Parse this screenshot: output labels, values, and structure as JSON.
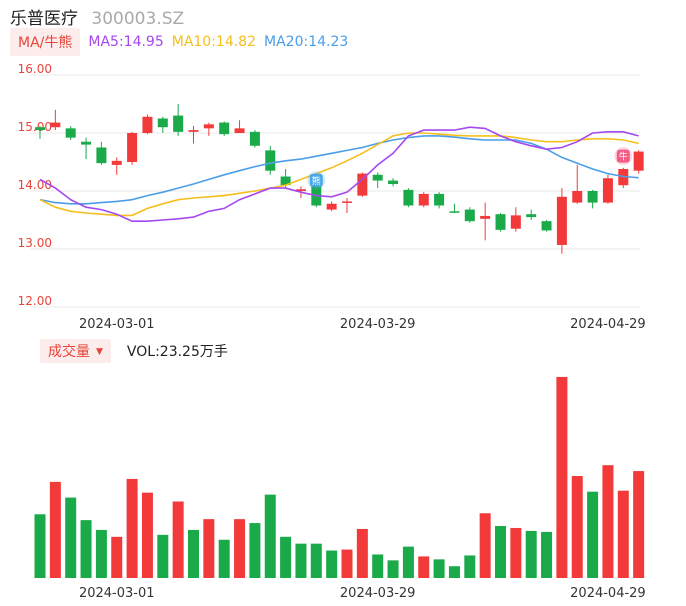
{
  "header": {
    "name": "乐普医疗",
    "code": "300003.SZ"
  },
  "ma_bar": {
    "toggle_label": "MA/牛熊",
    "ma5_label": "MA5:14.95",
    "ma10_label": "MA10:14.82",
    "ma20_label": "MA20:14.23",
    "colors": {
      "toggle": "#e8443a",
      "ma5": "#a548f0",
      "ma10": "#f5bf1d",
      "ma20": "#4a9ee8"
    }
  },
  "volume_bar": {
    "toggle_label": "成交量",
    "caret": "▼",
    "vol_label": "VOL:23.25万手"
  },
  "colors": {
    "up": "#f23a3a",
    "down": "#1aaa4a",
    "axis_text": "#e8443a",
    "grid": "#e8e8e8"
  },
  "markers": [
    {
      "label": "熊",
      "index": 18,
      "color": "#4aa8ea"
    },
    {
      "label": "牛",
      "index": 38,
      "color": "#f25e86"
    }
  ],
  "chart_data": [
    {
      "type": "candlestick",
      "ylim": [
        12.0,
        16.0
      ],
      "yticks": [
        "16.00",
        "15.00",
        "14.00",
        "13.00",
        "12.00"
      ],
      "xticks": [
        {
          "label": "2024-03-01",
          "index": 5
        },
        {
          "label": "2024-03-29",
          "index": 22
        },
        {
          "label": "2024-04-29",
          "index": 37
        }
      ],
      "candles": [
        {
          "o": 15.1,
          "c": 15.05,
          "h": 15.12,
          "l": 14.9
        },
        {
          "o": 15.1,
          "c": 15.18,
          "h": 15.4,
          "l": 15.05
        },
        {
          "o": 15.08,
          "c": 14.92,
          "h": 15.12,
          "l": 14.88
        },
        {
          "o": 14.85,
          "c": 14.8,
          "h": 14.92,
          "l": 14.55
        },
        {
          "o": 14.75,
          "c": 14.48,
          "h": 14.85,
          "l": 14.45
        },
        {
          "o": 14.45,
          "c": 14.52,
          "h": 14.58,
          "l": 14.28
        },
        {
          "o": 14.5,
          "c": 15.0,
          "h": 15.02,
          "l": 14.45
        },
        {
          "o": 15.0,
          "c": 15.28,
          "h": 15.32,
          "l": 14.98
        },
        {
          "o": 15.25,
          "c": 15.1,
          "h": 15.28,
          "l": 15.0
        },
        {
          "o": 15.3,
          "c": 15.02,
          "h": 15.5,
          "l": 14.95
        },
        {
          "o": 15.02,
          "c": 15.05,
          "h": 15.12,
          "l": 14.82
        },
        {
          "o": 15.08,
          "c": 15.15,
          "h": 15.18,
          "l": 14.95
        },
        {
          "o": 15.18,
          "c": 14.98,
          "h": 15.2,
          "l": 14.95
        },
        {
          "o": 15.0,
          "c": 15.08,
          "h": 15.22,
          "l": 15.0
        },
        {
          "o": 15.02,
          "c": 14.78,
          "h": 15.05,
          "l": 14.75
        },
        {
          "o": 14.7,
          "c": 14.35,
          "h": 14.78,
          "l": 14.28
        },
        {
          "o": 14.25,
          "c": 14.1,
          "h": 14.38,
          "l": 14.05
        },
        {
          "o": 14.0,
          "c": 14.03,
          "h": 14.08,
          "l": 13.88
        },
        {
          "o": 14.12,
          "c": 13.75,
          "h": 14.15,
          "l": 13.72
        },
        {
          "o": 13.68,
          "c": 13.78,
          "h": 13.82,
          "l": 13.65
        },
        {
          "o": 13.8,
          "c": 13.82,
          "h": 13.88,
          "l": 13.62
        },
        {
          "o": 13.92,
          "c": 14.3,
          "h": 14.32,
          "l": 13.9
        },
        {
          "o": 14.28,
          "c": 14.18,
          "h": 14.32,
          "l": 14.05
        },
        {
          "o": 14.18,
          "c": 14.12,
          "h": 14.22,
          "l": 14.08
        },
        {
          "o": 14.02,
          "c": 13.75,
          "h": 14.05,
          "l": 13.72
        },
        {
          "o": 13.75,
          "c": 13.95,
          "h": 13.98,
          "l": 13.72
        },
        {
          "o": 13.95,
          "c": 13.75,
          "h": 13.98,
          "l": 13.7
        },
        {
          "o": 13.65,
          "c": 13.63,
          "h": 13.78,
          "l": 13.62
        },
        {
          "o": 13.68,
          "c": 13.48,
          "h": 13.72,
          "l": 13.45
        },
        {
          "o": 13.52,
          "c": 13.57,
          "h": 13.8,
          "l": 13.15
        },
        {
          "o": 13.6,
          "c": 13.33,
          "h": 13.62,
          "l": 13.3
        },
        {
          "o": 13.35,
          "c": 13.58,
          "h": 13.72,
          "l": 13.3
        },
        {
          "o": 13.6,
          "c": 13.55,
          "h": 13.68,
          "l": 13.5
        },
        {
          "o": 13.48,
          "c": 13.32,
          "h": 13.5,
          "l": 13.3
        },
        {
          "o": 13.07,
          "c": 13.9,
          "h": 14.05,
          "l": 12.92
        },
        {
          "o": 13.8,
          "c": 14.0,
          "h": 14.45,
          "l": 13.78
        },
        {
          "o": 14.0,
          "c": 13.8,
          "h": 14.02,
          "l": 13.7
        },
        {
          "o": 13.8,
          "c": 14.22,
          "h": 14.28,
          "l": 13.78
        },
        {
          "o": 14.1,
          "c": 14.38,
          "h": 14.4,
          "l": 14.05
        },
        {
          "o": 14.35,
          "c": 14.68,
          "h": 14.7,
          "l": 14.3
        }
      ],
      "ma": {
        "ma5": [
          14.2,
          14.05,
          13.85,
          13.72,
          13.68,
          13.6,
          13.48,
          13.48,
          13.5,
          13.52,
          13.55,
          13.65,
          13.7,
          13.85,
          13.95,
          14.05,
          14.05,
          13.98,
          13.92,
          13.9,
          13.98,
          14.2,
          14.45,
          14.65,
          14.95,
          15.05,
          15.05,
          15.05,
          15.1,
          15.08,
          14.95,
          14.85,
          14.78,
          14.72,
          14.75,
          14.85,
          15.0,
          15.02,
          15.02,
          14.95
        ],
        "ma10": [
          13.85,
          13.72,
          13.65,
          13.62,
          13.6,
          13.58,
          13.58,
          13.7,
          13.78,
          13.85,
          13.88,
          13.9,
          13.92,
          13.96,
          14.0,
          14.05,
          14.1,
          14.2,
          14.3,
          14.4,
          14.52,
          14.65,
          14.8,
          14.95,
          15.0,
          15.0,
          14.98,
          14.96,
          14.95,
          14.95,
          14.95,
          14.92,
          14.88,
          14.85,
          14.85,
          14.88,
          14.9,
          14.9,
          14.88,
          14.82
        ],
        "ma20": [
          13.85,
          13.8,
          13.78,
          13.78,
          13.8,
          13.82,
          13.85,
          13.92,
          13.98,
          14.05,
          14.12,
          14.2,
          14.28,
          14.35,
          14.42,
          14.48,
          14.52,
          14.55,
          14.6,
          14.65,
          14.7,
          14.75,
          14.82,
          14.88,
          14.92,
          14.95,
          14.95,
          14.93,
          14.9,
          14.88,
          14.88,
          14.88,
          14.82,
          14.72,
          14.58,
          14.48,
          14.38,
          14.3,
          14.25,
          14.23
        ]
      }
    },
    {
      "type": "bar",
      "title": "成交量",
      "values": [
        6.5,
        9.8,
        8.2,
        5.9,
        4.9,
        4.2,
        10.1,
        8.7,
        4.4,
        7.8,
        4.9,
        6.0,
        3.9,
        6.0,
        5.6,
        8.5,
        4.2,
        3.5,
        3.5,
        2.8,
        2.9,
        5.0,
        2.4,
        1.8,
        3.2,
        2.2,
        1.9,
        1.2,
        2.3,
        6.6,
        5.3,
        5.1,
        4.8,
        4.7,
        20.5,
        10.4,
        8.8,
        11.5,
        8.9,
        10.9
      ],
      "directions": [
        "down",
        "up",
        "down",
        "down",
        "down",
        "up",
        "up",
        "up",
        "down",
        "up",
        "down",
        "up",
        "down",
        "up",
        "down",
        "down",
        "down",
        "down",
        "down",
        "down",
        "up",
        "up",
        "down",
        "down",
        "down",
        "up",
        "down",
        "down",
        "down",
        "up",
        "down",
        "up",
        "down",
        "down",
        "up",
        "up",
        "down",
        "up",
        "up",
        "up"
      ],
      "ylim": [
        0,
        21.0
      ]
    }
  ]
}
